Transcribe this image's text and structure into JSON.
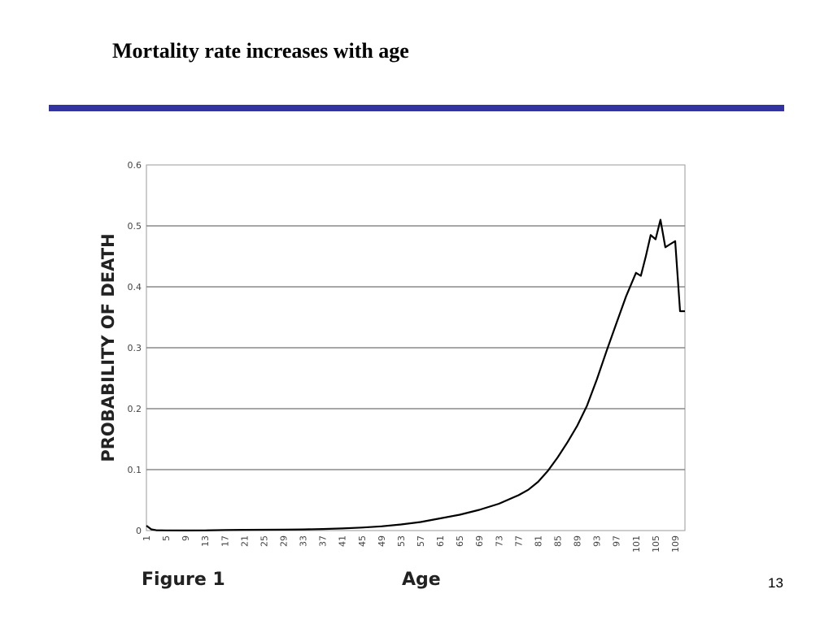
{
  "slide": {
    "title": "Mortality rate increases with age",
    "number": "13",
    "rule_color": "#3333a0"
  },
  "chart_data": {
    "type": "line",
    "figure_label": "Figure 1",
    "xlabel": "Age",
    "ylabel": "PROBABILITY OF DEATH",
    "ylim": [
      0,
      0.6
    ],
    "yticks": [
      0,
      0.1,
      0.2,
      0.3,
      0.4,
      0.5,
      0.6
    ],
    "ytick_labels": [
      "0",
      "0.1",
      "0.2",
      "0.3",
      "0.4",
      "0.5",
      "0.6"
    ],
    "xlim": [
      1,
      111
    ],
    "xtick_labels": [
      "1",
      "5",
      "9",
      "13",
      "17",
      "21",
      "25",
      "29",
      "33",
      "37",
      "41",
      "45",
      "49",
      "53",
      "57",
      "61",
      "65",
      "69",
      "73",
      "77",
      "81",
      "85",
      "89",
      "93",
      "97",
      "101",
      "105",
      "109"
    ],
    "grid": true,
    "line_color": "#000000",
    "series": [
      {
        "x": [
          1,
          2,
          3,
          5,
          9,
          13,
          17,
          21,
          25,
          29,
          33,
          37,
          41,
          45,
          49,
          53,
          57,
          61,
          65,
          69,
          73,
          77,
          79,
          81,
          83,
          85,
          87,
          89,
          91,
          93,
          95,
          97,
          99,
          101,
          102,
          103,
          104,
          105,
          106,
          107,
          108,
          109,
          110,
          111
        ],
        "values": [
          0.008,
          0.002,
          0.0005,
          0.0003,
          0.0002,
          0.0003,
          0.0008,
          0.0012,
          0.0013,
          0.0015,
          0.0018,
          0.0025,
          0.0035,
          0.005,
          0.007,
          0.01,
          0.014,
          0.02,
          0.026,
          0.034,
          0.044,
          0.058,
          0.067,
          0.08,
          0.098,
          0.12,
          0.145,
          0.172,
          0.205,
          0.248,
          0.295,
          0.34,
          0.385,
          0.423,
          0.418,
          0.45,
          0.485,
          0.478,
          0.51,
          0.465,
          0.47,
          0.475,
          0.36,
          0.36
        ]
      }
    ]
  }
}
